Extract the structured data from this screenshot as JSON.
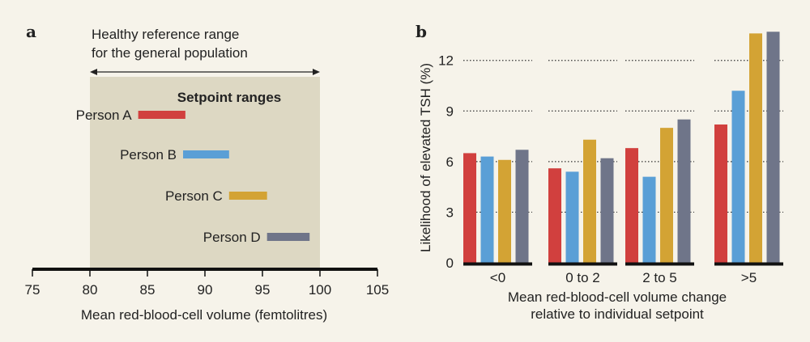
{
  "panel_a_label": "a",
  "panel_b_label": "b",
  "colors": {
    "background": "#f6f3ea",
    "reference_shade": "#ddd8c3",
    "red": "#d1403e",
    "blue": "#5a9fd6",
    "gold": "#d3a334",
    "gray": "#6f7589"
  },
  "chart_data": [
    {
      "type": "range",
      "panel": "a",
      "reference_range_label_line1": "Healthy reference range",
      "reference_range_label_line2": "for the general population",
      "reference_range": [
        80,
        100
      ],
      "setpoint_title": "Setpoint ranges",
      "series": [
        {
          "name": "Person A",
          "range": [
            84.2,
            88.3
          ],
          "color": "#d1403e"
        },
        {
          "name": "Person B",
          "range": [
            88.1,
            92.1
          ],
          "color": "#5a9fd6"
        },
        {
          "name": "Person C",
          "range": [
            92.1,
            95.4
          ],
          "color": "#d3a334"
        },
        {
          "name": "Person D",
          "range": [
            95.4,
            99.1
          ],
          "color": "#6f7589"
        }
      ],
      "xlabel": "Mean red-blood-cell volume (femtolitres)",
      "xlim": [
        75,
        105
      ],
      "xticks": [
        "75",
        "80",
        "85",
        "90",
        "95",
        "100",
        "105"
      ],
      "xtick_values": [
        75,
        80,
        85,
        90,
        95,
        100,
        105
      ]
    },
    {
      "type": "bar",
      "panel": "b",
      "categories": [
        "<0",
        "0 to 2",
        "2 to 5",
        ">5"
      ],
      "series": [
        {
          "name": "Person A",
          "color": "#d1403e",
          "values": [
            6.5,
            5.6,
            6.8,
            8.2
          ]
        },
        {
          "name": "Person B",
          "color": "#5a9fd6",
          "values": [
            6.3,
            5.4,
            5.1,
            10.2
          ]
        },
        {
          "name": "Person C",
          "color": "#d3a334",
          "values": [
            6.1,
            7.3,
            8.0,
            13.6
          ]
        },
        {
          "name": "Person D",
          "color": "#6f7589",
          "values": [
            6.7,
            6.2,
            8.5,
            13.7
          ]
        }
      ],
      "ylabel": "Likelihood of elevated TSH (%)",
      "ylim": [
        0,
        14
      ],
      "yticks": [
        "0",
        "3",
        "6",
        "9",
        "12"
      ],
      "ytick_values": [
        0,
        3,
        6,
        9,
        12
      ],
      "xlabel_line1": "Mean red-blood-cell volume change",
      "xlabel_line2": "relative to individual setpoint",
      "grid": "dotted horizontal"
    }
  ]
}
